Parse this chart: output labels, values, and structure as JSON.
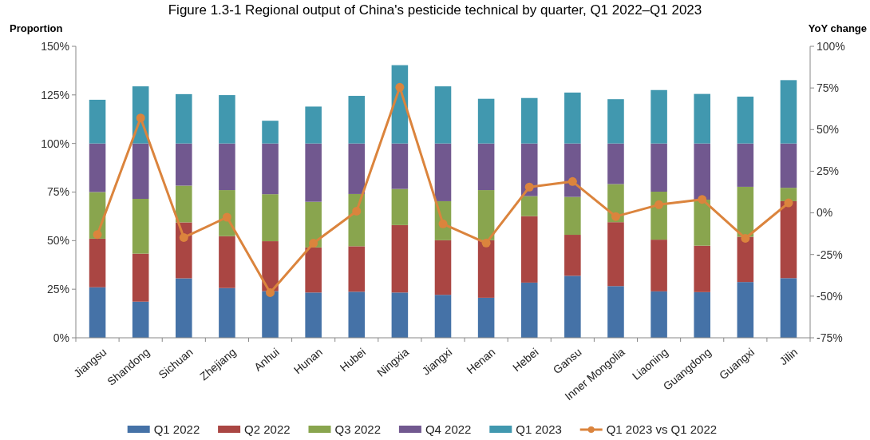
{
  "chart_data": {
    "type": "bar",
    "stacked": true,
    "title": "Figure 1.3-1 Regional output of China's pesticide technical by quarter, Q1 2022–Q1 2023",
    "ylabel": "Proportion",
    "y2label": "YoY change",
    "categories": [
      "Jiangsu",
      "Shandong",
      "Sichuan",
      "Zhejiang",
      "Anhui",
      "Hunan",
      "Hubei",
      "Ningxia",
      "Jiangxi",
      "Henan",
      "Hebei",
      "Gansu",
      "Inner Mongolia",
      "Liaoning",
      "Guangdong",
      "Guangxi",
      "Jilin"
    ],
    "series": [
      {
        "name": "Q1 2022",
        "color": "#4572a7",
        "values": [
          26,
          18.6,
          30.6,
          25.6,
          24,
          23.3,
          23.7,
          23.3,
          22.1,
          20.6,
          28.4,
          31.9,
          26.6,
          23.9,
          23.5,
          28.7,
          30.7
        ]
      },
      {
        "name": "Q2 2022",
        "color": "#aa4643",
        "values": [
          25,
          24.7,
          28.8,
          26.7,
          25.7,
          23.2,
          23.4,
          34.7,
          28.1,
          29.6,
          34.2,
          21.1,
          32.9,
          26.6,
          23.9,
          23.3,
          39.6
        ]
      },
      {
        "name": "Q3 2022",
        "color": "#89a54e",
        "values": [
          24,
          28.2,
          18.9,
          23.7,
          24.2,
          23.5,
          26.9,
          18.6,
          20.1,
          25.8,
          10.3,
          19.5,
          19.6,
          24.7,
          23.7,
          25.7,
          6.9
        ]
      },
      {
        "name": "Q4 2022",
        "color": "#71588f",
        "values": [
          25,
          28.5,
          21.7,
          24,
          26.1,
          30,
          26,
          23.4,
          29.7,
          24,
          27.1,
          27.5,
          20.9,
          24.8,
          28.9,
          22.3,
          22.8
        ]
      },
      {
        "name": "Q1 2023",
        "color": "#4198af",
        "values": [
          22.5,
          29.4,
          25.4,
          24.9,
          11.7,
          19,
          24.5,
          40.3,
          29.4,
          23,
          23.4,
          26.2,
          22.8,
          27.5,
          25.5,
          24.1,
          32.6
        ]
      },
      {
        "name": "Q1 2023 vs Q1 2022",
        "type": "line",
        "axis": "y2",
        "color": "#db843d",
        "values": [
          -13,
          57,
          -14.8,
          -2.6,
          -47.9,
          -18.2,
          1,
          75.4,
          -6.6,
          -18.1,
          15.5,
          18.8,
          -2.2,
          4.9,
          8.1,
          -15.3,
          6
        ]
      }
    ],
    "ylim": [
      0,
      150
    ],
    "yticks": [
      {
        "value": 0,
        "label": "0%"
      },
      {
        "value": 25,
        "label": "25%"
      },
      {
        "value": 50,
        "label": "50%"
      },
      {
        "value": 75,
        "label": "75%"
      },
      {
        "value": 100,
        "label": "100%"
      },
      {
        "value": 125,
        "label": "125%"
      },
      {
        "value": 150,
        "label": "150%"
      }
    ],
    "y2lim": [
      -75,
      100
    ],
    "y2ticks": [
      {
        "value": -75,
        "label": "-75%"
      },
      {
        "value": -50,
        "label": "-50%"
      },
      {
        "value": -25,
        "label": "-25%"
      },
      {
        "value": 0,
        "label": "0%"
      },
      {
        "value": 25,
        "label": "25%"
      },
      {
        "value": 50,
        "label": "50%"
      },
      {
        "value": 75,
        "label": "75%"
      },
      {
        "value": 100,
        "label": "100%"
      }
    ],
    "marker": "circle",
    "legend": "bottom"
  }
}
